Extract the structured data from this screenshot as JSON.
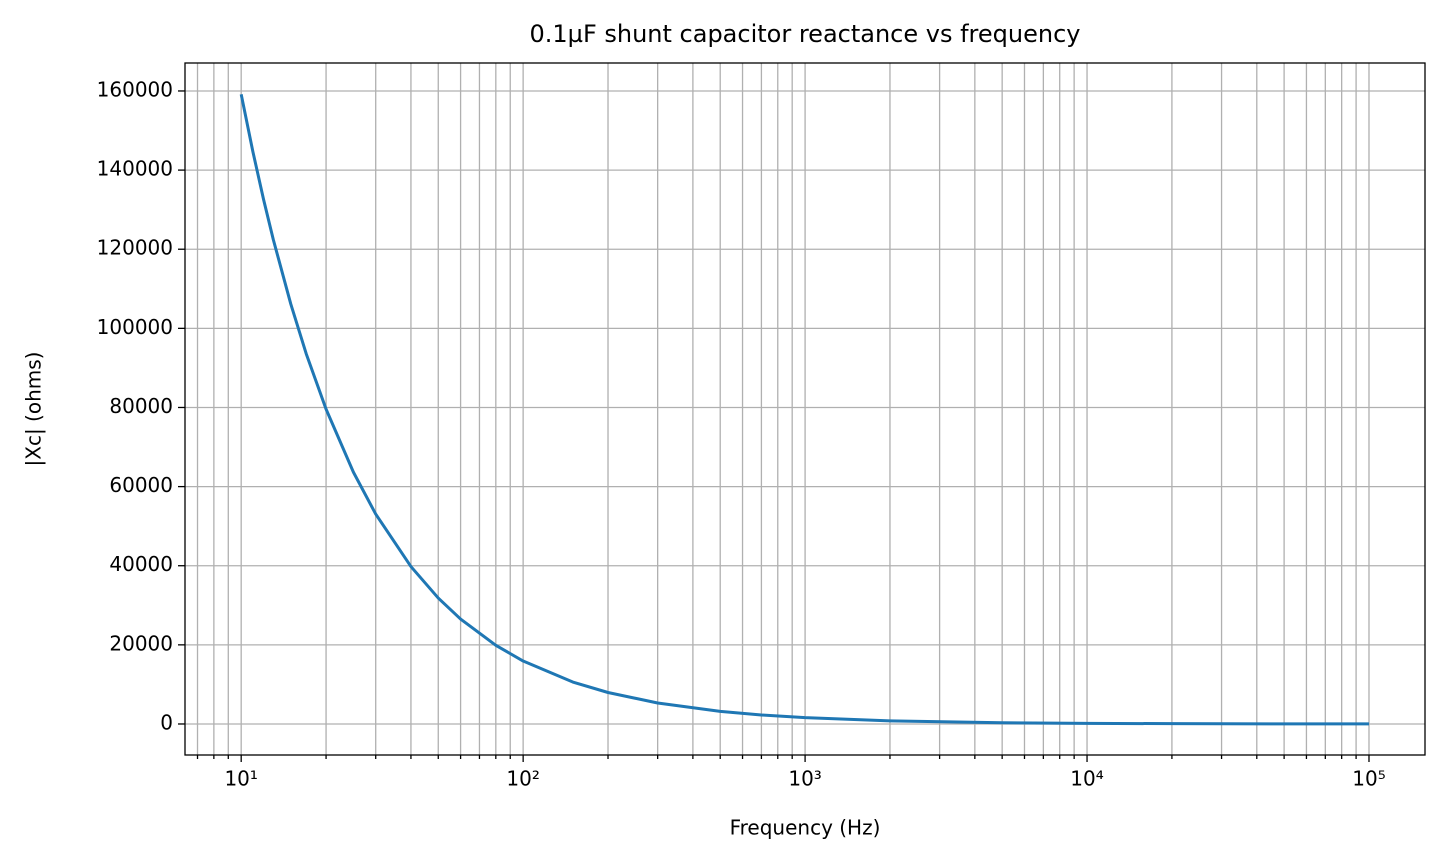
{
  "chart_data": {
    "type": "line",
    "title": "0.1µF shunt capacitor reactance vs frequency",
    "xlabel": "Frequency (Hz)",
    "ylabel": "|Xc| (ohms)",
    "x": [
      10,
      11,
      12,
      13,
      15,
      17,
      20,
      25,
      30,
      40,
      50,
      60,
      80,
      100,
      150,
      200,
      300,
      500,
      700,
      1000,
      2000,
      5000,
      10000,
      20000,
      50000,
      100000
    ],
    "values": [
      159155,
      144686,
      132629,
      122427,
      106103,
      93621,
      79577,
      63662,
      53052,
      39789,
      31831,
      26526,
      19894,
      15915,
      10610,
      7958,
      5305,
      3183,
      2274,
      1592,
      796,
      318,
      159,
      80,
      32,
      16
    ],
    "color": "#1f77b4",
    "xscale": "log",
    "xlim": [
      6.32,
      158000
    ],
    "ylim": [
      -7840,
      167070
    ],
    "xticks": [
      {
        "value": 10,
        "label": "10¹"
      },
      {
        "value": 100,
        "label": "10²"
      },
      {
        "value": 1000,
        "label": "10³"
      },
      {
        "value": 10000,
        "label": "10⁴"
      },
      {
        "value": 100000,
        "label": "10⁵"
      }
    ],
    "xminorticks": [
      7,
      8,
      9,
      20,
      30,
      40,
      50,
      60,
      70,
      80,
      90,
      200,
      300,
      400,
      500,
      600,
      700,
      800,
      900,
      2000,
      3000,
      4000,
      5000,
      6000,
      7000,
      8000,
      9000,
      20000,
      30000,
      40000,
      50000,
      60000,
      70000,
      80000,
      90000
    ],
    "yticks": [
      0,
      20000,
      40000,
      60000,
      80000,
      100000,
      120000,
      140000,
      160000
    ],
    "grid": true
  }
}
